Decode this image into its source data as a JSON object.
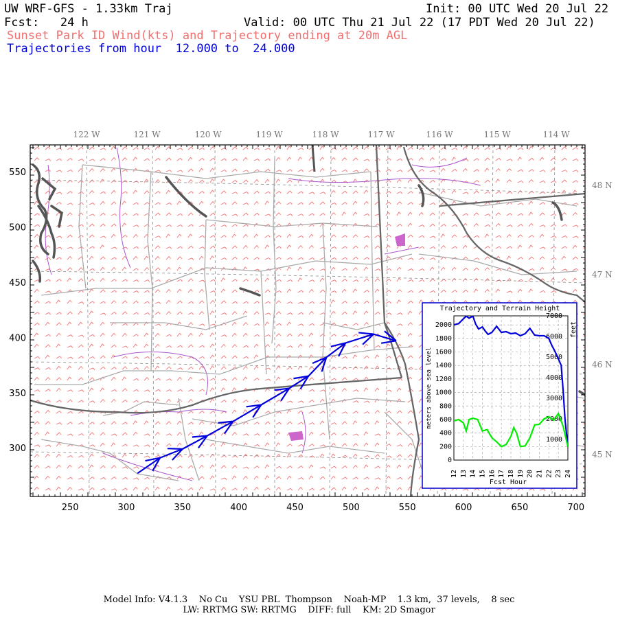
{
  "header": {
    "title": "UW WRF-GFS - 1.33km Traj",
    "init": "Init: 00 UTC Wed 20 Jul 22",
    "fcst": "Fcst:   24 h",
    "valid": "Valid: 00 UTC Thu 21 Jul 22 (17 PDT Wed 20 Jul 22)",
    "subtitle": "Sunset Park ID Wind(kts) and Trajectory ending at 20m AGL",
    "traj_range": "Trajectories from hour  12.000 to  24.000"
  },
  "map": {
    "lon_labels": [
      "122 W",
      "121 W",
      "120 W",
      "119 W",
      "118 W",
      "117 W",
      "116 W",
      "115 W",
      "114 W"
    ],
    "lat_labels": [
      "48 N",
      "47 N",
      "46 N",
      "45 N"
    ],
    "x_ticks": [
      "250",
      "300",
      "350",
      "400",
      "450",
      "500",
      "550",
      "600",
      "650",
      "700"
    ],
    "y_ticks": [
      "550",
      "500",
      "450",
      "400",
      "350",
      "300"
    ],
    "colors": {
      "wind": "#f26f6f",
      "trajectory": "#0000dd",
      "borders": "#666666",
      "counties": "#aaaaaa",
      "rivers": "#aa55cc"
    },
    "trajectory": [
      {
        "x": 310,
        "y": 277
      },
      {
        "x": 330,
        "y": 291
      },
      {
        "x": 350,
        "y": 299
      },
      {
        "x": 372,
        "y": 311
      },
      {
        "x": 395,
        "y": 324
      },
      {
        "x": 420,
        "y": 339
      },
      {
        "x": 445,
        "y": 354
      },
      {
        "x": 462,
        "y": 365
      },
      {
        "x": 478,
        "y": 382
      },
      {
        "x": 495,
        "y": 395
      },
      {
        "x": 520,
        "y": 403
      },
      {
        "x": 540,
        "y": 397
      }
    ]
  },
  "inset": {
    "title": "Trajectory and Terrain Height",
    "ylabel_left": "meters above sea level",
    "ylabel_right": "feet",
    "xlabel": "Fcst Hour",
    "left_ticks": [
      "0",
      "200",
      "400",
      "600",
      "800",
      "1000",
      "1200",
      "1400",
      "1600",
      "1800",
      "2000"
    ],
    "right_ticks": [
      "1000",
      "2000",
      "3000",
      "4000",
      "5000",
      "6000",
      "7000"
    ],
    "x_ticks": [
      "12",
      "13",
      "14",
      "15",
      "16",
      "17",
      "18",
      "19",
      "20",
      "21",
      "22",
      "23",
      "24"
    ]
  },
  "chart_data": {
    "type": "line",
    "title": "Trajectory and Terrain Height",
    "xlabel": "Fcst Hour",
    "ylabel": "meters above sea level",
    "xlim": [
      12,
      24
    ],
    "ylim": [
      0,
      2134
    ],
    "series": [
      {
        "color": "#0000dd",
        "x": [
          12,
          12.5,
          13,
          13.3,
          13.6,
          14,
          14.3,
          14.6,
          15,
          15.3,
          15.6,
          16,
          16.5,
          17,
          17.5,
          18,
          18.5,
          19,
          19.5,
          20,
          20.5,
          21,
          21.5,
          22,
          22.3,
          22.6,
          23,
          23.3,
          23.5,
          23.7,
          24
        ],
        "values": [
          2000,
          2020,
          2090,
          2130,
          2100,
          2130,
          2010,
          1940,
          1970,
          1910,
          1860,
          1890,
          1980,
          1890,
          1900,
          1870,
          1880,
          1840,
          1870,
          1950,
          1850,
          1840,
          1840,
          1800,
          1700,
          1620,
          1500,
          1400,
          1030,
          600,
          200
        ]
      },
      {
        "color": "#00ee00",
        "x": [
          12,
          12.5,
          13,
          13.3,
          13.6,
          14,
          14.5,
          15,
          15.5,
          16,
          16.5,
          17,
          17.5,
          18,
          18.3,
          18.6,
          19,
          19.5,
          20,
          20.5,
          21,
          21.5,
          22,
          22.5,
          23,
          23.5,
          24
        ],
        "values": [
          580,
          600,
          550,
          430,
          600,
          620,
          600,
          430,
          450,
          330,
          270,
          200,
          230,
          350,
          480,
          400,
          200,
          210,
          330,
          520,
          530,
          610,
          640,
          590,
          690,
          500,
          200
        ]
      }
    ]
  },
  "footer": {
    "line1": "Model Info: V4.1.3    No Cu    YSU PBL  Thompson    Noah-MP    1.3 km,  37 levels,    8 sec",
    "line2": "LW: RRTMG SW: RRTMG    DIFF: full    KM: 2D Smagor"
  }
}
